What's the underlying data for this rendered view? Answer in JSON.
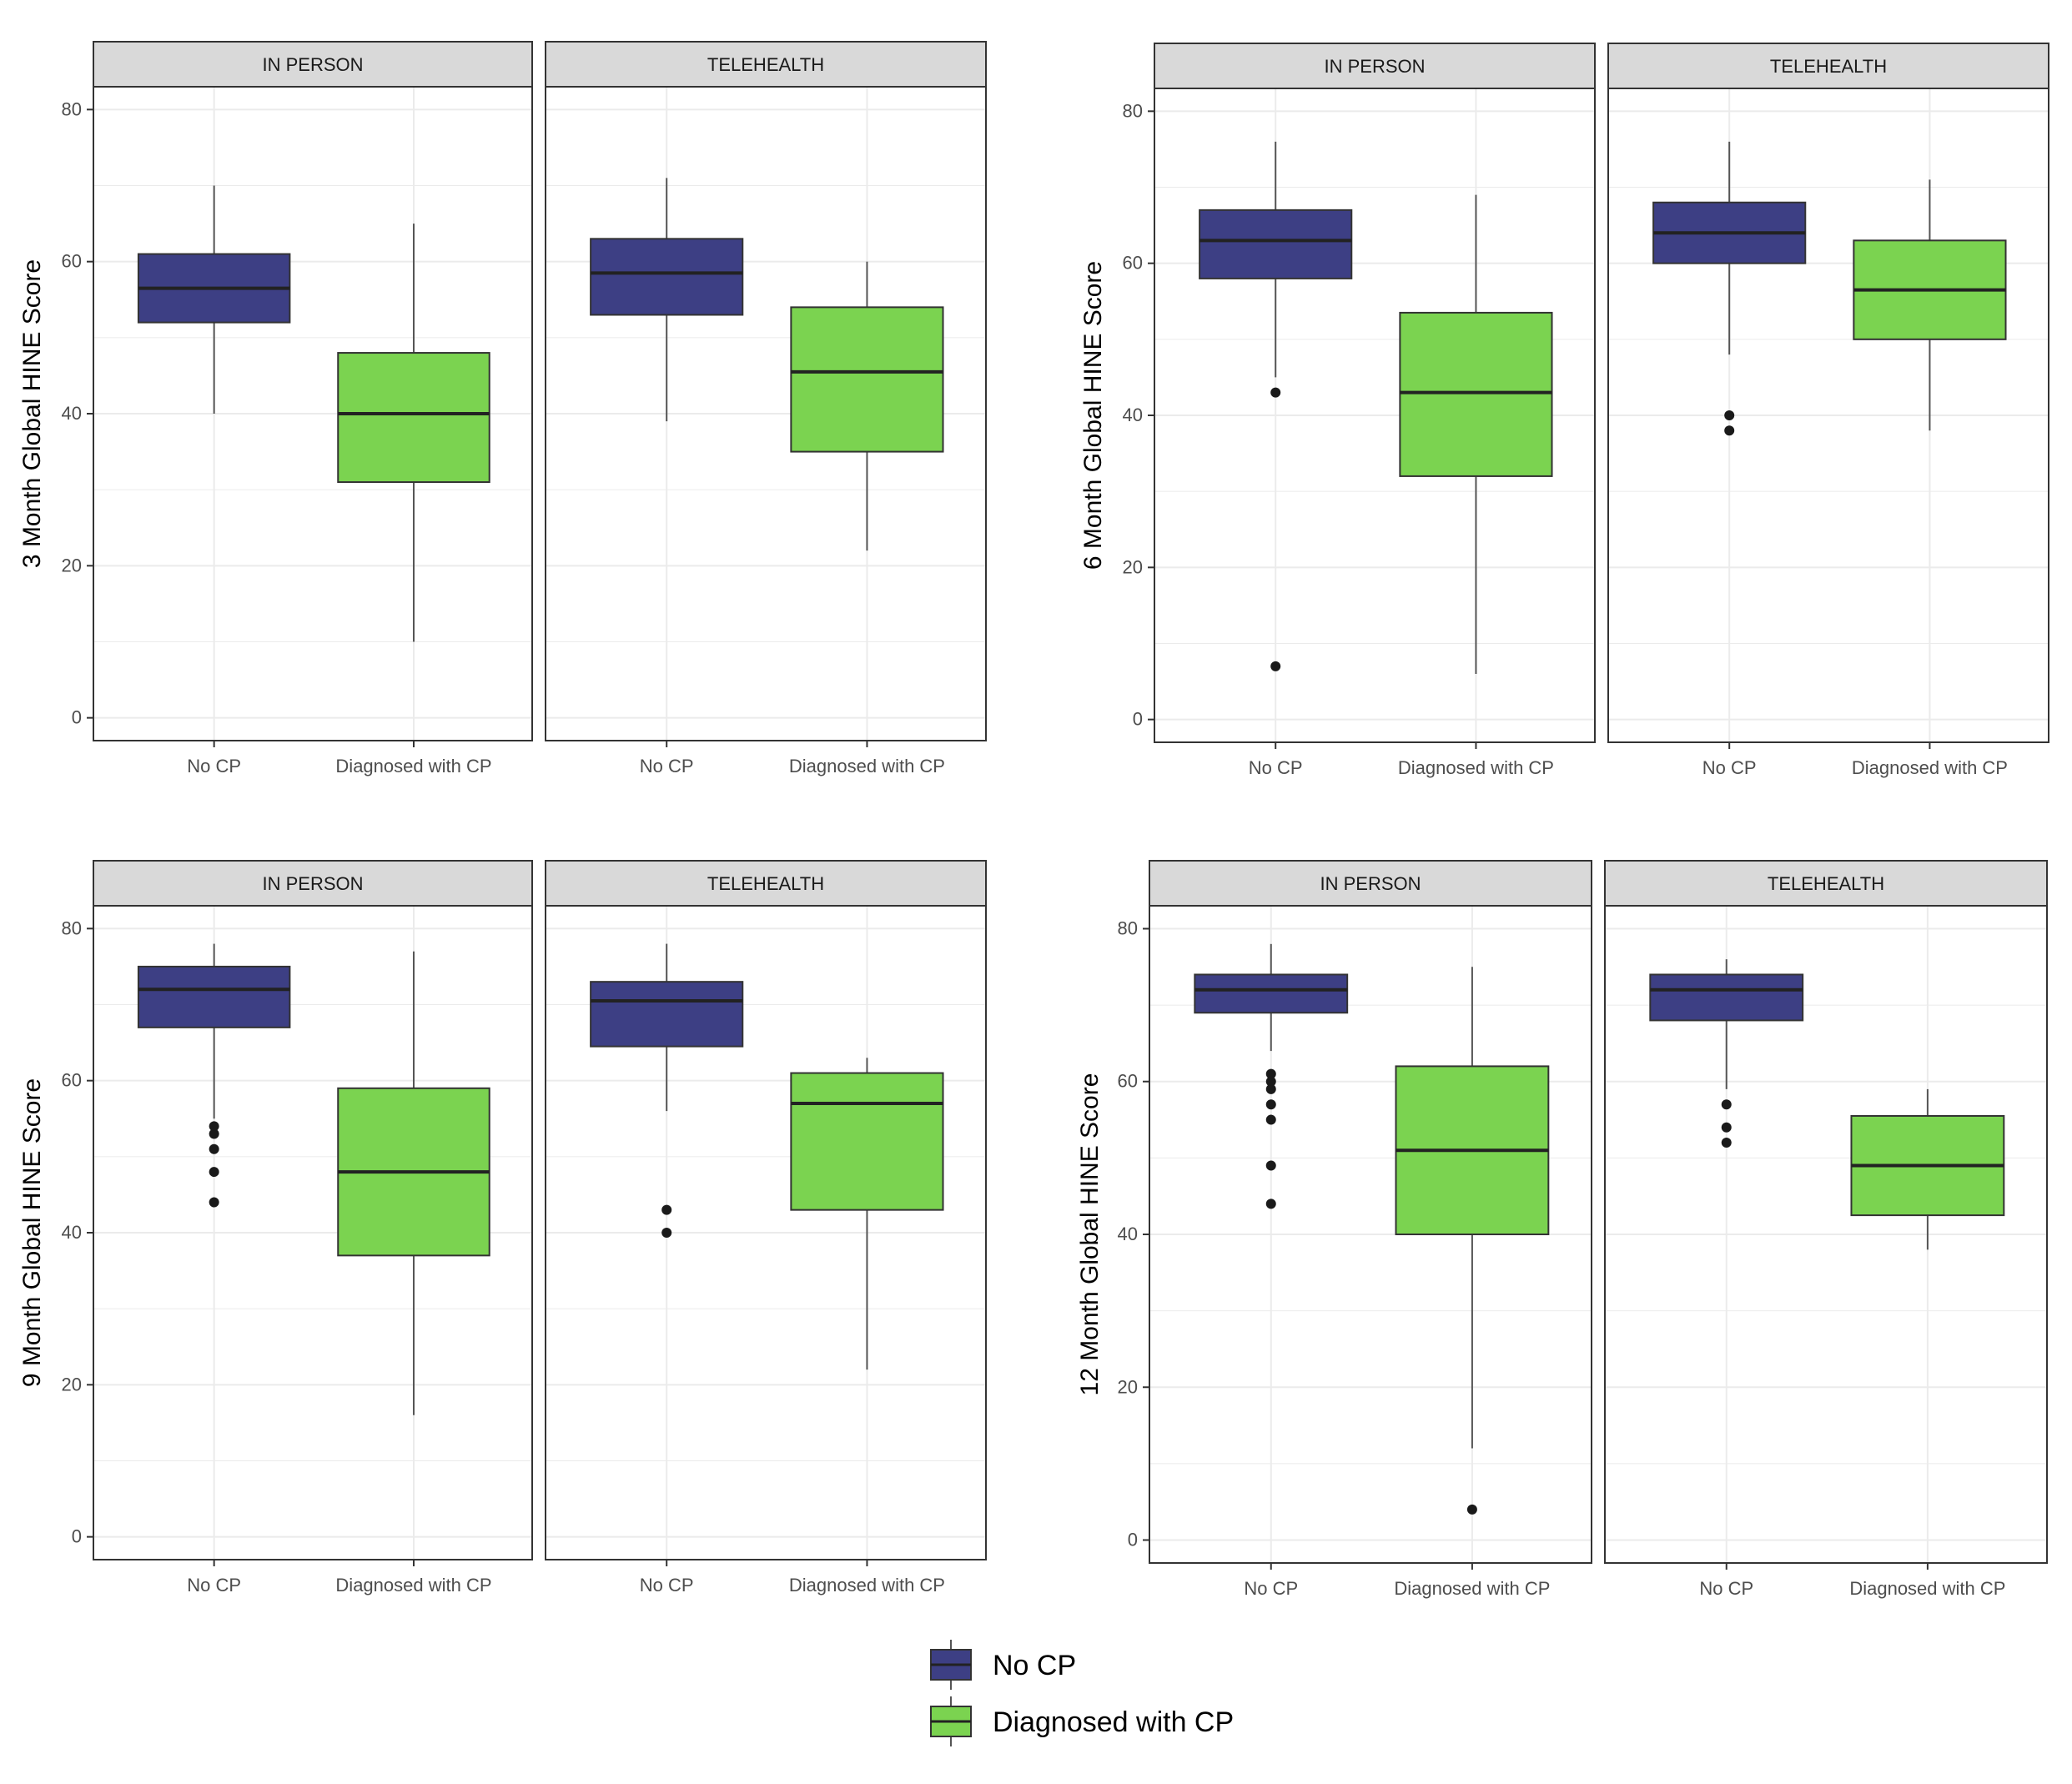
{
  "colors": {
    "no_cp": "#3d3f84",
    "cp": "#7bd350",
    "strip_bg": "#d9d9d9",
    "grid": "#ebebeb",
    "median": "#222222",
    "whisker": "#555555",
    "outlier": "#1a1a1a"
  },
  "chart_data": [
    {
      "type": "boxplot",
      "ylabel": "3 Month Global HINE Score",
      "ylim": [
        -3,
        83
      ],
      "yticks": [
        0,
        20,
        40,
        60,
        80
      ],
      "categories": [
        "No CP",
        "Diagnosed with CP"
      ],
      "panels": [
        {
          "name": "IN PERSON",
          "boxes": [
            {
              "group": "No CP",
              "lower_whisker": 40,
              "q1": 52,
              "median": 56.5,
              "q3": 61,
              "upper_whisker": 70,
              "outliers": []
            },
            {
              "group": "Diagnosed with CP",
              "lower_whisker": 10,
              "q1": 31,
              "median": 40,
              "q3": 48,
              "upper_whisker": 65,
              "outliers": []
            }
          ]
        },
        {
          "name": "TELEHEALTH",
          "boxes": [
            {
              "group": "No CP",
              "lower_whisker": 39,
              "q1": 53,
              "median": 58.5,
              "q3": 63,
              "upper_whisker": 71,
              "outliers": []
            },
            {
              "group": "Diagnosed with CP",
              "lower_whisker": 22,
              "q1": 35,
              "median": 45.5,
              "q3": 54,
              "upper_whisker": 60,
              "outliers": []
            }
          ]
        }
      ]
    },
    {
      "type": "boxplot",
      "ylabel": "6 Month Global HINE Score",
      "ylim": [
        -3,
        83
      ],
      "yticks": [
        0,
        20,
        40,
        60,
        80
      ],
      "categories": [
        "No CP",
        "Diagnosed with CP"
      ],
      "panels": [
        {
          "name": "IN PERSON",
          "boxes": [
            {
              "group": "No CP",
              "lower_whisker": 45,
              "q1": 58,
              "median": 63,
              "q3": 67,
              "upper_whisker": 76,
              "outliers": [
                43,
                7
              ]
            },
            {
              "group": "Diagnosed with CP",
              "lower_whisker": 6,
              "q1": 32,
              "median": 43,
              "q3": 53.5,
              "upper_whisker": 69,
              "outliers": []
            }
          ]
        },
        {
          "name": "TELEHEALTH",
          "boxes": [
            {
              "group": "No CP",
              "lower_whisker": 48,
              "q1": 60,
              "median": 64,
              "q3": 68,
              "upper_whisker": 76,
              "outliers": [
                40,
                38
              ]
            },
            {
              "group": "Diagnosed with CP",
              "lower_whisker": 38,
              "q1": 50,
              "median": 56.5,
              "q3": 63,
              "upper_whisker": 71,
              "outliers": []
            }
          ]
        }
      ]
    },
    {
      "type": "boxplot",
      "ylabel": "9 Month Global HINE Score",
      "ylim": [
        -3,
        83
      ],
      "yticks": [
        0,
        20,
        40,
        60,
        80
      ],
      "categories": [
        "No CP",
        "Diagnosed with CP"
      ],
      "panels": [
        {
          "name": "IN PERSON",
          "boxes": [
            {
              "group": "No CP",
              "lower_whisker": 55,
              "q1": 67,
              "median": 72,
              "q3": 75,
              "upper_whisker": 78,
              "outliers": [
                54,
                53,
                51,
                48,
                44
              ]
            },
            {
              "group": "Diagnosed with CP",
              "lower_whisker": 16,
              "q1": 37,
              "median": 48,
              "q3": 59,
              "upper_whisker": 77,
              "outliers": []
            }
          ]
        },
        {
          "name": "TELEHEALTH",
          "boxes": [
            {
              "group": "No CP",
              "lower_whisker": 56,
              "q1": 64.5,
              "median": 70.5,
              "q3": 73,
              "upper_whisker": 78,
              "outliers": [
                43,
                40
              ]
            },
            {
              "group": "Diagnosed with CP",
              "lower_whisker": 22,
              "q1": 43,
              "median": 57,
              "q3": 61,
              "upper_whisker": 63,
              "outliers": []
            }
          ]
        }
      ]
    },
    {
      "type": "boxplot",
      "ylabel": "12 Month Global HINE Score",
      "ylim": [
        -3,
        83
      ],
      "yticks": [
        0,
        20,
        40,
        60,
        80
      ],
      "categories": [
        "No CP",
        "Diagnosed with CP"
      ],
      "panels": [
        {
          "name": "IN PERSON",
          "boxes": [
            {
              "group": "No CP",
              "lower_whisker": 64,
              "q1": 69,
              "median": 72,
              "q3": 74,
              "upper_whisker": 78,
              "outliers": [
                61,
                60,
                59,
                57,
                55,
                49,
                44
              ]
            },
            {
              "group": "Diagnosed with CP",
              "lower_whisker": 12,
              "q1": 40,
              "median": 51,
              "q3": 62,
              "upper_whisker": 75,
              "outliers": [
                4
              ]
            }
          ]
        },
        {
          "name": "TELEHEALTH",
          "boxes": [
            {
              "group": "No CP",
              "lower_whisker": 59,
              "q1": 68,
              "median": 72,
              "q3": 74,
              "upper_whisker": 76,
              "outliers": [
                57,
                54,
                52
              ]
            },
            {
              "group": "Diagnosed with CP",
              "lower_whisker": 38,
              "q1": 42.5,
              "median": 49,
              "q3": 55.5,
              "upper_whisker": 59,
              "outliers": []
            }
          ]
        }
      ]
    }
  ],
  "legend": {
    "items": [
      {
        "label": "No CP",
        "color": "#3d3f84"
      },
      {
        "label": "Diagnosed with CP",
        "color": "#7bd350"
      }
    ]
  }
}
